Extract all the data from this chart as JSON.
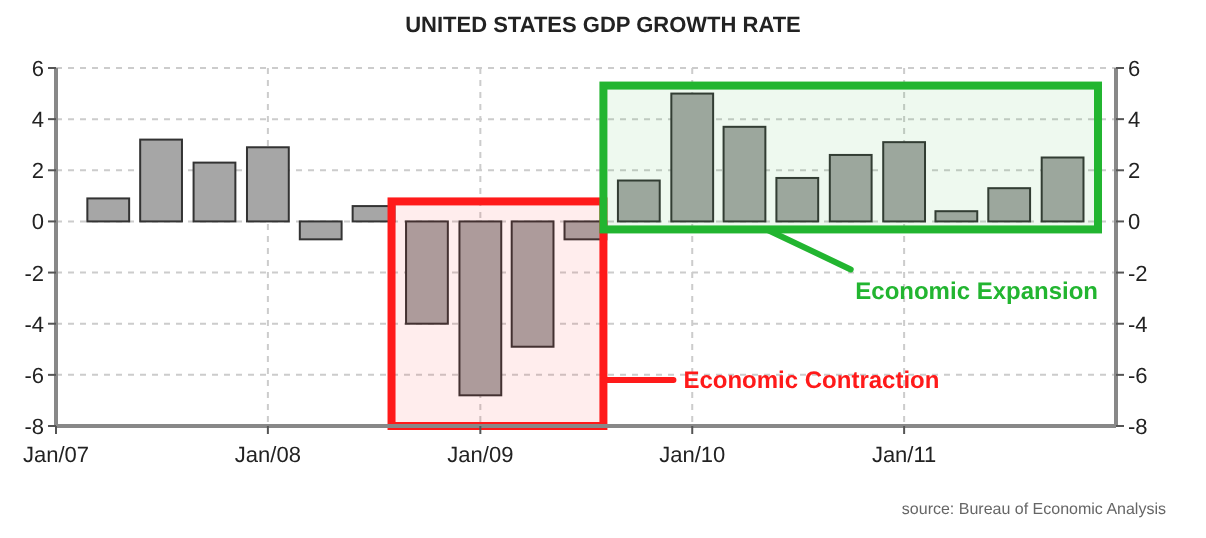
{
  "chart_data": {
    "type": "bar",
    "title": "UNITED STATES GDP GROWTH RATE",
    "x": [
      "2007-04",
      "2007-07",
      "2007-10",
      "2008-01",
      "2008-04",
      "2008-07",
      "2008-10",
      "2009-01",
      "2009-04",
      "2009-07",
      "2009-10",
      "2010-01",
      "2010-04",
      "2010-07",
      "2010-10",
      "2011-01",
      "2011-04",
      "2011-07",
      "2011-10"
    ],
    "values": [
      0.9,
      3.2,
      2.3,
      2.9,
      -0.7,
      0.6,
      -4.0,
      -6.8,
      -4.9,
      -0.7,
      1.6,
      5.0,
      3.7,
      1.7,
      2.6,
      3.1,
      0.4,
      1.3,
      2.5
    ],
    "color": "#a6a6a6",
    "xlim": [
      "2007-01",
      "2012-01"
    ],
    "xticks": [
      {
        "value": "2007-01",
        "label": "Jan/07"
      },
      {
        "value": "2008-01",
        "label": "Jan/08"
      },
      {
        "value": "2009-01",
        "label": "Jan/09"
      },
      {
        "value": "2010-01",
        "label": "Jan/10"
      },
      {
        "value": "2011-01",
        "label": "Jan/11"
      }
    ],
    "ylim": [
      -8,
      6
    ],
    "yticks": [
      -8,
      -6,
      -4,
      -2,
      0,
      2,
      4,
      6
    ],
    "y2lim": [
      -8,
      6
    ],
    "y2ticks": [
      -8,
      -6,
      -4,
      -2,
      0,
      2,
      4,
      6
    ],
    "grid": true,
    "bands": [
      {
        "axis": "x",
        "from": "2008-08",
        "to": "2009-08",
        "label": "Economic Contraction",
        "color": "#ff1a1a"
      },
      {
        "axis": "x",
        "from": "2009-08",
        "to": "2011-12",
        "label": "Economic Expansion",
        "color": "#22b530"
      }
    ],
    "annotations": [
      "source: Bureau of Economic Analysis"
    ]
  }
}
